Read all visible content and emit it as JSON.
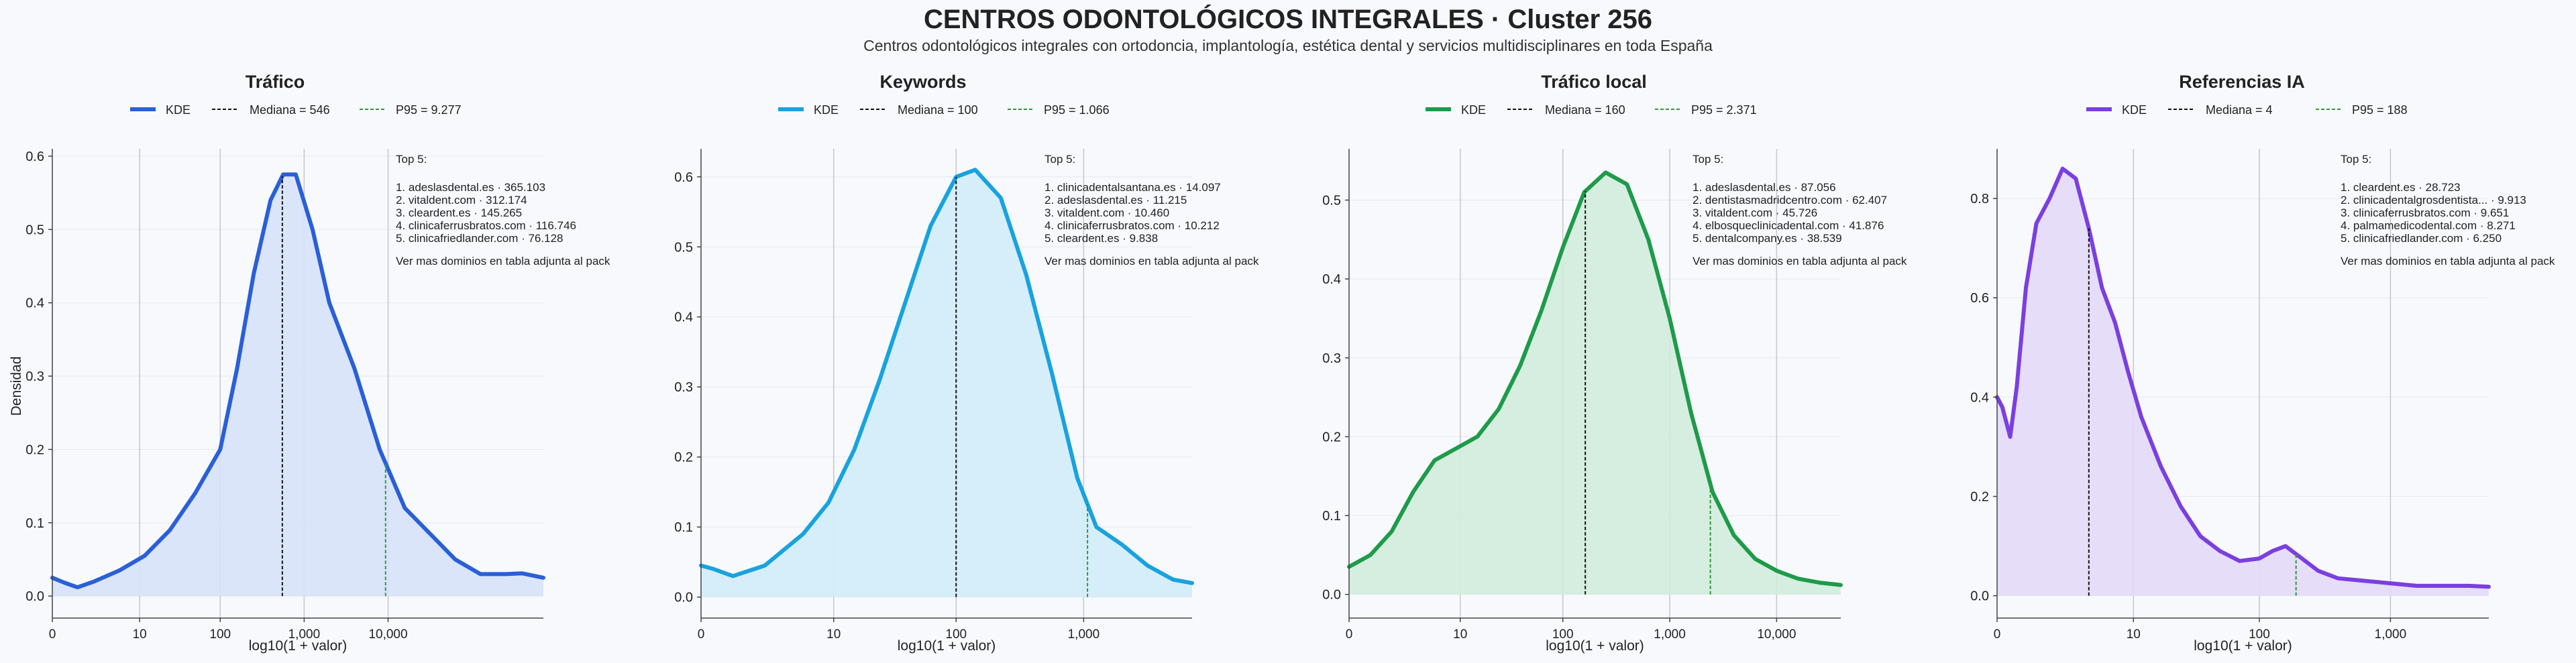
{
  "figure": {
    "title": "CENTROS ODONTOLÓGICOS INTEGRALES · Cluster 256",
    "subtitle": "Centros odontológicos integrales con ortodoncia, implantología, estética dental y servicios multidisciplinares en toda España"
  },
  "chart_data": [
    {
      "type": "area",
      "title": "Tráfico",
      "xlabel": "log10(1 + valor)",
      "ylabel": "Densidad",
      "color": "#2a5fd8",
      "fill": "#d6e2fa",
      "xlim": [
        0,
        5.85
      ],
      "ylim": [
        -0.03,
        0.61
      ],
      "x_ticks": [
        {
          "v": 0,
          "label": "0"
        },
        {
          "v": 1.04,
          "label": "10"
        },
        {
          "v": 2.0,
          "label": "100"
        },
        {
          "v": 3.0,
          "label": "1,000"
        },
        {
          "v": 4.0,
          "label": "10,000"
        }
      ],
      "y_ticks": [
        0.0,
        0.1,
        0.2,
        0.3,
        0.4,
        0.5,
        0.6
      ],
      "y_tick_labels": [
        "0.0",
        "0.1",
        "0.2",
        "0.3",
        "0.4",
        "0.5",
        "0.6"
      ],
      "legend": {
        "kde": "KDE",
        "median": "Mediana = 546",
        "p95": "P95 = 9.277"
      },
      "median_x": 2.74,
      "p95_x": 3.97,
      "x": [
        0.0,
        0.15,
        0.3,
        0.5,
        0.8,
        1.1,
        1.4,
        1.7,
        2.0,
        2.2,
        2.4,
        2.6,
        2.75,
        2.9,
        3.1,
        3.3,
        3.6,
        3.9,
        4.2,
        4.5,
        4.8,
        5.1,
        5.4,
        5.6,
        5.85
      ],
      "y": [
        0.025,
        0.018,
        0.012,
        0.02,
        0.035,
        0.055,
        0.09,
        0.14,
        0.2,
        0.31,
        0.44,
        0.54,
        0.575,
        0.575,
        0.5,
        0.4,
        0.31,
        0.2,
        0.12,
        0.085,
        0.05,
        0.03,
        0.03,
        0.031,
        0.025
      ],
      "annotation": {
        "heading": "Top 5:",
        "items": [
          "1. adeslasdental.es · 365.103",
          "2. vitaldent.com · 312.174",
          "3. cleardent.es · 145.265",
          "4. clinicaferrusbratos.com · 116.746",
          "5. clinicafriedlander.com · 76.128"
        ],
        "footer": "Ver mas dominios en tabla adjunta al pack"
      }
    },
    {
      "type": "area",
      "title": "Keywords",
      "xlabel": "log10(1 + valor)",
      "ylabel": "",
      "color": "#18a2e0",
      "fill": "#d1ecf9",
      "xlim": [
        0,
        3.85
      ],
      "ylim": [
        -0.03,
        0.64
      ],
      "x_ticks": [
        {
          "v": 0,
          "label": "0"
        },
        {
          "v": 1.04,
          "label": "10"
        },
        {
          "v": 2.0,
          "label": "100"
        },
        {
          "v": 3.0,
          "label": "1,000"
        }
      ],
      "y_ticks": [
        0.0,
        0.1,
        0.2,
        0.3,
        0.4,
        0.5,
        0.6
      ],
      "y_tick_labels": [
        "0.0",
        "0.1",
        "0.2",
        "0.3",
        "0.4",
        "0.5",
        "0.6"
      ],
      "legend": {
        "kde": "KDE",
        "median": "Mediana = 100",
        "p95": "P95 = 1.066"
      },
      "median_x": 2.0,
      "p95_x": 3.03,
      "x": [
        0.0,
        0.1,
        0.25,
        0.5,
        0.8,
        1.0,
        1.2,
        1.4,
        1.6,
        1.8,
        2.0,
        2.15,
        2.35,
        2.55,
        2.75,
        2.95,
        3.1,
        3.3,
        3.5,
        3.7,
        3.85
      ],
      "y": [
        0.045,
        0.04,
        0.03,
        0.045,
        0.09,
        0.135,
        0.21,
        0.31,
        0.42,
        0.53,
        0.6,
        0.61,
        0.57,
        0.46,
        0.32,
        0.17,
        0.1,
        0.075,
        0.045,
        0.025,
        0.02
      ],
      "annotation": {
        "heading": "Top 5:",
        "items": [
          "1. clinicadentalsantana.es · 14.097",
          "2. adeslasdental.es · 11.215",
          "3. vitaldent.com · 10.460",
          "4. clinicaferrusbratos.com · 10.212",
          "5. cleardent.es · 9.838"
        ],
        "footer": "Ver mas dominios en tabla adjunta al pack"
      }
    },
    {
      "type": "area",
      "title": "Tráfico local",
      "xlabel": "log10(1 + valor)",
      "ylabel": "",
      "color": "#1e9b4a",
      "fill": "#d1ecdb",
      "xlim": [
        0,
        4.6
      ],
      "ylim": [
        -0.03,
        0.565
      ],
      "x_ticks": [
        {
          "v": 0,
          "label": "0"
        },
        {
          "v": 1.04,
          "label": "10"
        },
        {
          "v": 2.0,
          "label": "100"
        },
        {
          "v": 3.0,
          "label": "1,000"
        },
        {
          "v": 4.0,
          "label": "10,000"
        }
      ],
      "y_ticks": [
        0.0,
        0.1,
        0.2,
        0.3,
        0.4,
        0.5
      ],
      "y_tick_labels": [
        "0.0",
        "0.1",
        "0.2",
        "0.3",
        "0.4",
        "0.5"
      ],
      "legend": {
        "kde": "KDE",
        "median": "Mediana = 160",
        "p95": "P95 = 2.371"
      },
      "median_x": 2.21,
      "p95_x": 3.38,
      "x": [
        0.0,
        0.2,
        0.4,
        0.6,
        0.8,
        1.0,
        1.2,
        1.4,
        1.6,
        1.8,
        2.0,
        2.2,
        2.4,
        2.6,
        2.8,
        3.0,
        3.2,
        3.4,
        3.6,
        3.8,
        4.0,
        4.2,
        4.4,
        4.6
      ],
      "y": [
        0.035,
        0.05,
        0.08,
        0.13,
        0.17,
        0.185,
        0.2,
        0.235,
        0.29,
        0.36,
        0.44,
        0.51,
        0.535,
        0.52,
        0.45,
        0.35,
        0.23,
        0.13,
        0.075,
        0.045,
        0.03,
        0.02,
        0.015,
        0.012
      ],
      "annotation": {
        "heading": "Top 5:",
        "items": [
          "1. adeslasdental.es · 87.056",
          "2. dentistasmadridcentro.com · 62.407",
          "3. vitaldent.com · 45.726",
          "4. elbosqueclinicadental.com · 41.876",
          "5. dentalcompany.es · 38.539"
        ],
        "footer": "Ver mas dominios en tabla adjunta al pack"
      }
    },
    {
      "type": "area",
      "title": "Referencias IA",
      "xlabel": "log10(1 + valor)",
      "ylabel": "",
      "color": "#7b3fe0",
      "fill": "#e3d9f8",
      "xlim": [
        0,
        3.75
      ],
      "ylim": [
        -0.045,
        0.9
      ],
      "x_ticks": [
        {
          "v": 0,
          "label": "0"
        },
        {
          "v": 1.04,
          "label": "10"
        },
        {
          "v": 2.0,
          "label": "100"
        },
        {
          "v": 3.0,
          "label": "1,000"
        }
      ],
      "y_ticks": [
        0.0,
        0.2,
        0.4,
        0.6,
        0.8
      ],
      "y_tick_labels": [
        "0.0",
        "0.2",
        "0.4",
        "0.6",
        "0.8"
      ],
      "legend": {
        "kde": "KDE",
        "median": "Mediana = 4",
        "p95": "P95 = 188"
      },
      "median_x": 0.7,
      "p95_x": 2.28,
      "x": [
        0.0,
        0.04,
        0.1,
        0.15,
        0.22,
        0.3,
        0.4,
        0.5,
        0.6,
        0.7,
        0.8,
        0.9,
        1.0,
        1.1,
        1.25,
        1.4,
        1.55,
        1.7,
        1.85,
        2.0,
        2.1,
        2.2,
        2.3,
        2.45,
        2.6,
        2.8,
        3.0,
        3.2,
        3.4,
        3.6,
        3.75
      ],
      "y": [
        0.4,
        0.38,
        0.32,
        0.42,
        0.62,
        0.75,
        0.8,
        0.86,
        0.84,
        0.74,
        0.62,
        0.55,
        0.45,
        0.36,
        0.26,
        0.18,
        0.12,
        0.09,
        0.07,
        0.075,
        0.09,
        0.1,
        0.08,
        0.05,
        0.035,
        0.03,
        0.025,
        0.02,
        0.02,
        0.02,
        0.018
      ],
      "annotation": {
        "heading": "Top 5:",
        "items": [
          "1. cleardent.es · 28.723",
          "2. clinicadentalgrosdentista... · 9.913",
          "3. clinicaferrusbratos.com · 9.651",
          "4. palmamedicodental.com · 8.271",
          "5. clinicafriedlander.com · 6.250"
        ],
        "footer": "Ver mas dominios en tabla adjunta al pack"
      }
    }
  ]
}
